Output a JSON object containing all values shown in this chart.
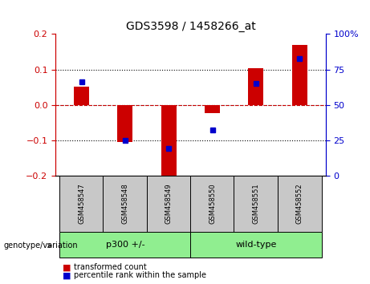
{
  "title": "GDS3598 / 1458266_at",
  "samples": [
    "GSM458547",
    "GSM458548",
    "GSM458549",
    "GSM458550",
    "GSM458551",
    "GSM458552"
  ],
  "red_bars": [
    0.053,
    -0.105,
    -0.205,
    -0.022,
    0.105,
    0.17
  ],
  "blue_squares": [
    0.065,
    -0.1,
    -0.122,
    -0.07,
    0.062,
    0.13
  ],
  "ylim_left": [
    -0.2,
    0.2
  ],
  "ylim_right": [
    0,
    100
  ],
  "yticks_left": [
    -0.2,
    -0.1,
    0.0,
    0.1,
    0.2
  ],
  "yticks_right": [
    0,
    25,
    50,
    75,
    100
  ],
  "ytick_labels_right": [
    "0",
    "25",
    "50",
    "75",
    "100%"
  ],
  "group_label": "genotype/variation",
  "group1_label": "p300 +/-",
  "group2_label": "wild-type",
  "red_color": "#CC0000",
  "blue_color": "#0000CC",
  "bar_width": 0.35,
  "bg_color": "#FFFFFF",
  "plot_bg_color": "#FFFFFF",
  "grid_color": "#000000",
  "zero_line_color": "#CC0000",
  "sample_box_color": "#C8C8C8",
  "group_color": "#90EE90",
  "legend_items": [
    "transformed count",
    "percentile rank within the sample"
  ]
}
